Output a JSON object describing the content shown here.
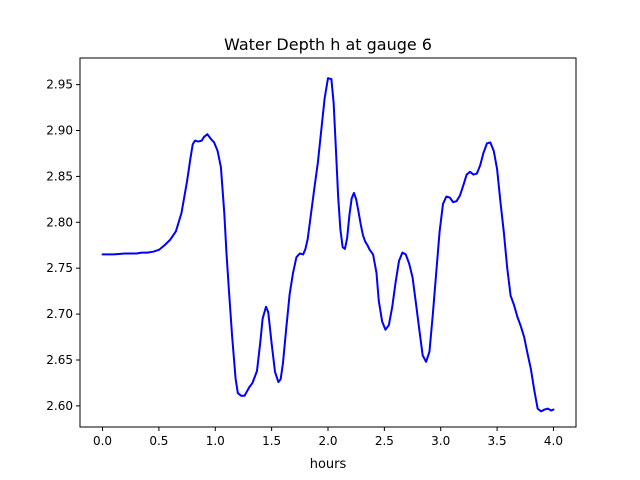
{
  "chart_data": {
    "type": "line",
    "title": "Water Depth h at gauge 6",
    "xlabel": "hours",
    "ylabel": "",
    "xlim": [
      -0.2,
      4.2
    ],
    "ylim": [
      2.577,
      2.979
    ],
    "xticks": [
      0.0,
      0.5,
      1.0,
      1.5,
      2.0,
      2.5,
      3.0,
      3.5,
      4.0
    ],
    "xtick_labels": [
      "0.0",
      "0.5",
      "1.0",
      "1.5",
      "2.0",
      "2.5",
      "3.0",
      "3.5",
      "4.0"
    ],
    "yticks": [
      2.6,
      2.65,
      2.7,
      2.75,
      2.8,
      2.85,
      2.9,
      2.95
    ],
    "ytick_labels": [
      "2.60",
      "2.65",
      "2.70",
      "2.75",
      "2.80",
      "2.85",
      "2.90",
      "2.95"
    ],
    "grid": false,
    "series": [
      {
        "color": "#0000ff",
        "x": [
          0.0,
          0.1,
          0.2,
          0.3,
          0.35,
          0.4,
          0.45,
          0.5,
          0.55,
          0.6,
          0.65,
          0.7,
          0.75,
          0.78,
          0.8,
          0.82,
          0.85,
          0.88,
          0.9,
          0.93,
          0.96,
          0.99,
          1.02,
          1.05,
          1.08,
          1.1,
          1.12,
          1.15,
          1.18,
          1.2,
          1.23,
          1.26,
          1.3,
          1.33,
          1.37,
          1.4,
          1.42,
          1.45,
          1.47,
          1.5,
          1.53,
          1.56,
          1.58,
          1.6,
          1.63,
          1.66,
          1.69,
          1.72,
          1.75,
          1.78,
          1.8,
          1.82,
          1.85,
          1.88,
          1.91,
          1.94,
          1.97,
          2.0,
          2.03,
          2.05,
          2.07,
          2.09,
          2.11,
          2.13,
          2.15,
          2.17,
          2.19,
          2.21,
          2.23,
          2.25,
          2.27,
          2.29,
          2.31,
          2.33,
          2.35,
          2.37,
          2.4,
          2.43,
          2.45,
          2.48,
          2.51,
          2.54,
          2.57,
          2.6,
          2.63,
          2.66,
          2.69,
          2.72,
          2.75,
          2.78,
          2.81,
          2.84,
          2.87,
          2.9,
          2.93,
          2.96,
          2.99,
          3.02,
          3.05,
          3.08,
          3.11,
          3.14,
          3.17,
          3.2,
          3.23,
          3.26,
          3.29,
          3.32,
          3.35,
          3.38,
          3.41,
          3.44,
          3.47,
          3.5,
          3.53,
          3.56,
          3.59,
          3.62,
          3.65,
          3.68,
          3.71,
          3.74,
          3.77,
          3.8,
          3.83,
          3.86,
          3.89,
          3.92,
          3.95,
          3.98,
          4.0
        ],
        "y": [
          2.765,
          2.765,
          2.766,
          2.766,
          2.767,
          2.767,
          2.768,
          2.77,
          2.775,
          2.781,
          2.79,
          2.81,
          2.845,
          2.87,
          2.885,
          2.889,
          2.888,
          2.889,
          2.893,
          2.896,
          2.891,
          2.887,
          2.878,
          2.86,
          2.81,
          2.765,
          2.728,
          2.675,
          2.63,
          2.614,
          2.611,
          2.611,
          2.62,
          2.625,
          2.638,
          2.67,
          2.695,
          2.708,
          2.702,
          2.668,
          2.637,
          2.626,
          2.629,
          2.646,
          2.685,
          2.722,
          2.745,
          2.762,
          2.766,
          2.765,
          2.771,
          2.782,
          2.81,
          2.838,
          2.865,
          2.9,
          2.935,
          2.957,
          2.956,
          2.93,
          2.88,
          2.828,
          2.792,
          2.773,
          2.771,
          2.783,
          2.808,
          2.826,
          2.832,
          2.825,
          2.812,
          2.798,
          2.786,
          2.779,
          2.775,
          2.77,
          2.765,
          2.745,
          2.715,
          2.692,
          2.683,
          2.688,
          2.708,
          2.735,
          2.758,
          2.767,
          2.765,
          2.755,
          2.74,
          2.712,
          2.683,
          2.655,
          2.648,
          2.659,
          2.7,
          2.745,
          2.79,
          2.82,
          2.828,
          2.827,
          2.822,
          2.823,
          2.829,
          2.84,
          2.852,
          2.855,
          2.852,
          2.853,
          2.862,
          2.876,
          2.886,
          2.887,
          2.878,
          2.858,
          2.822,
          2.789,
          2.75,
          2.72,
          2.71,
          2.697,
          2.687,
          2.675,
          2.657,
          2.64,
          2.617,
          2.597,
          2.594,
          2.596,
          2.597,
          2.595,
          2.596
        ]
      }
    ]
  }
}
